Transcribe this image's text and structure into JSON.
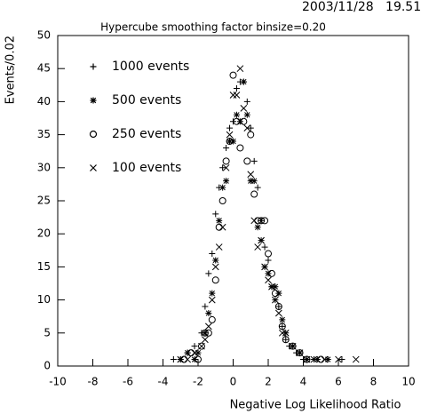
{
  "chart_data": {
    "type": "scatter",
    "title": "Hypercube smoothing factor binsize=0.20",
    "timestamp": "2003/11/28   19.51",
    "x_label": "Negative Log Likelihood Ratio",
    "y_label": "Events/0.02",
    "xlim": [
      -10,
      10
    ],
    "xticks": [
      -10,
      -8,
      -6,
      -4,
      -2,
      0,
      2,
      4,
      6,
      8,
      10
    ],
    "ylim": [
      0,
      50
    ],
    "yticks": [
      0,
      5,
      10,
      15,
      20,
      25,
      30,
      35,
      40,
      45,
      50
    ],
    "grid": false,
    "legend": "upper-left",
    "series": [
      {
        "name": "1000 events",
        "color": "#000000",
        "marker": "plus",
        "x": [
          -3.4,
          -3.0,
          -2.6,
          -2.2,
          -1.8,
          -1.6,
          -1.4,
          -1.2,
          -1.0,
          -0.8,
          -0.6,
          -0.4,
          -0.2,
          0,
          0.2,
          0.4,
          0.6,
          0.8,
          1.0,
          1.2,
          1.4,
          1.6,
          1.8,
          2.0,
          2.2,
          2.4,
          2.6,
          2.8,
          3.0,
          3.2,
          3.6,
          4.0,
          4.6,
          5.4,
          6.2
        ],
        "values": [
          1,
          1,
          2,
          3,
          5,
          9,
          14,
          17,
          23,
          27,
          30,
          33,
          36,
          37,
          42,
          43,
          43,
          40,
          36,
          31,
          27,
          22,
          18,
          16,
          12,
          10,
          9,
          6,
          4,
          3,
          2,
          1,
          1,
          1,
          1
        ]
      },
      {
        "name": "500 events",
        "color": "#000000",
        "marker": "star",
        "x": [
          -3.0,
          -2.6,
          -2.2,
          -2.0,
          -1.6,
          -1.4,
          -1.2,
          -1.0,
          -0.8,
          -0.6,
          -0.4,
          -0.2,
          0,
          0.2,
          0.4,
          0.6,
          0.8,
          1.0,
          1.2,
          1.4,
          1.6,
          1.8,
          2.0,
          2.2,
          2.4,
          2.6,
          2.8,
          3.0,
          3.4,
          3.8,
          4.2,
          4.8,
          5.4
        ],
        "values": [
          1,
          2,
          1,
          2,
          5,
          8,
          11,
          16,
          22,
          27,
          28,
          34,
          34,
          38,
          37,
          43,
          38,
          28,
          28,
          21,
          19,
          15,
          14,
          12,
          12,
          11,
          7,
          5,
          3,
          2,
          1,
          1,
          1
        ]
      },
      {
        "name": "250 events",
        "color": "#000000",
        "marker": "circle",
        "x": [
          -2.8,
          -2.4,
          -2.0,
          -1.8,
          -1.6,
          -1.4,
          -1.2,
          -1.0,
          -0.8,
          -0.6,
          -0.4,
          -0.2,
          0,
          0.2,
          0.4,
          0.6,
          0.8,
          1.0,
          1.2,
          1.4,
          1.6,
          1.8,
          2.0,
          2.2,
          2.4,
          2.6,
          2.8,
          3.0,
          3.4,
          3.8,
          4.2,
          5.0
        ],
        "values": [
          1,
          2,
          1,
          3,
          5,
          5,
          7,
          13,
          21,
          25,
          31,
          34,
          44,
          37,
          33,
          37,
          31,
          35,
          26,
          22,
          22,
          22,
          17,
          14,
          11,
          9,
          6,
          4,
          3,
          2,
          1,
          1
        ]
      },
      {
        "name": "100 events",
        "color": "#000000",
        "marker": "cross",
        "x": [
          -3.0,
          -2.6,
          -2.2,
          -1.8,
          -1.6,
          -1.4,
          -1.2,
          -1.0,
          -0.8,
          -0.6,
          -0.4,
          -0.2,
          0,
          0.2,
          0.4,
          0.6,
          0.8,
          1.0,
          1.2,
          1.4,
          1.6,
          1.8,
          2.0,
          2.2,
          2.4,
          2.6,
          2.8,
          3.0,
          3.4,
          3.8,
          4.2,
          4.6,
          5.2,
          6.0,
          7.0
        ],
        "values": [
          1,
          1,
          2,
          3,
          4,
          6,
          10,
          15,
          18,
          21,
          30,
          35,
          41,
          41,
          45,
          39,
          36,
          29,
          22,
          18,
          19,
          15,
          13,
          12,
          10,
          8,
          5,
          5,
          3,
          2,
          1,
          1,
          1,
          1,
          1
        ]
      }
    ]
  }
}
